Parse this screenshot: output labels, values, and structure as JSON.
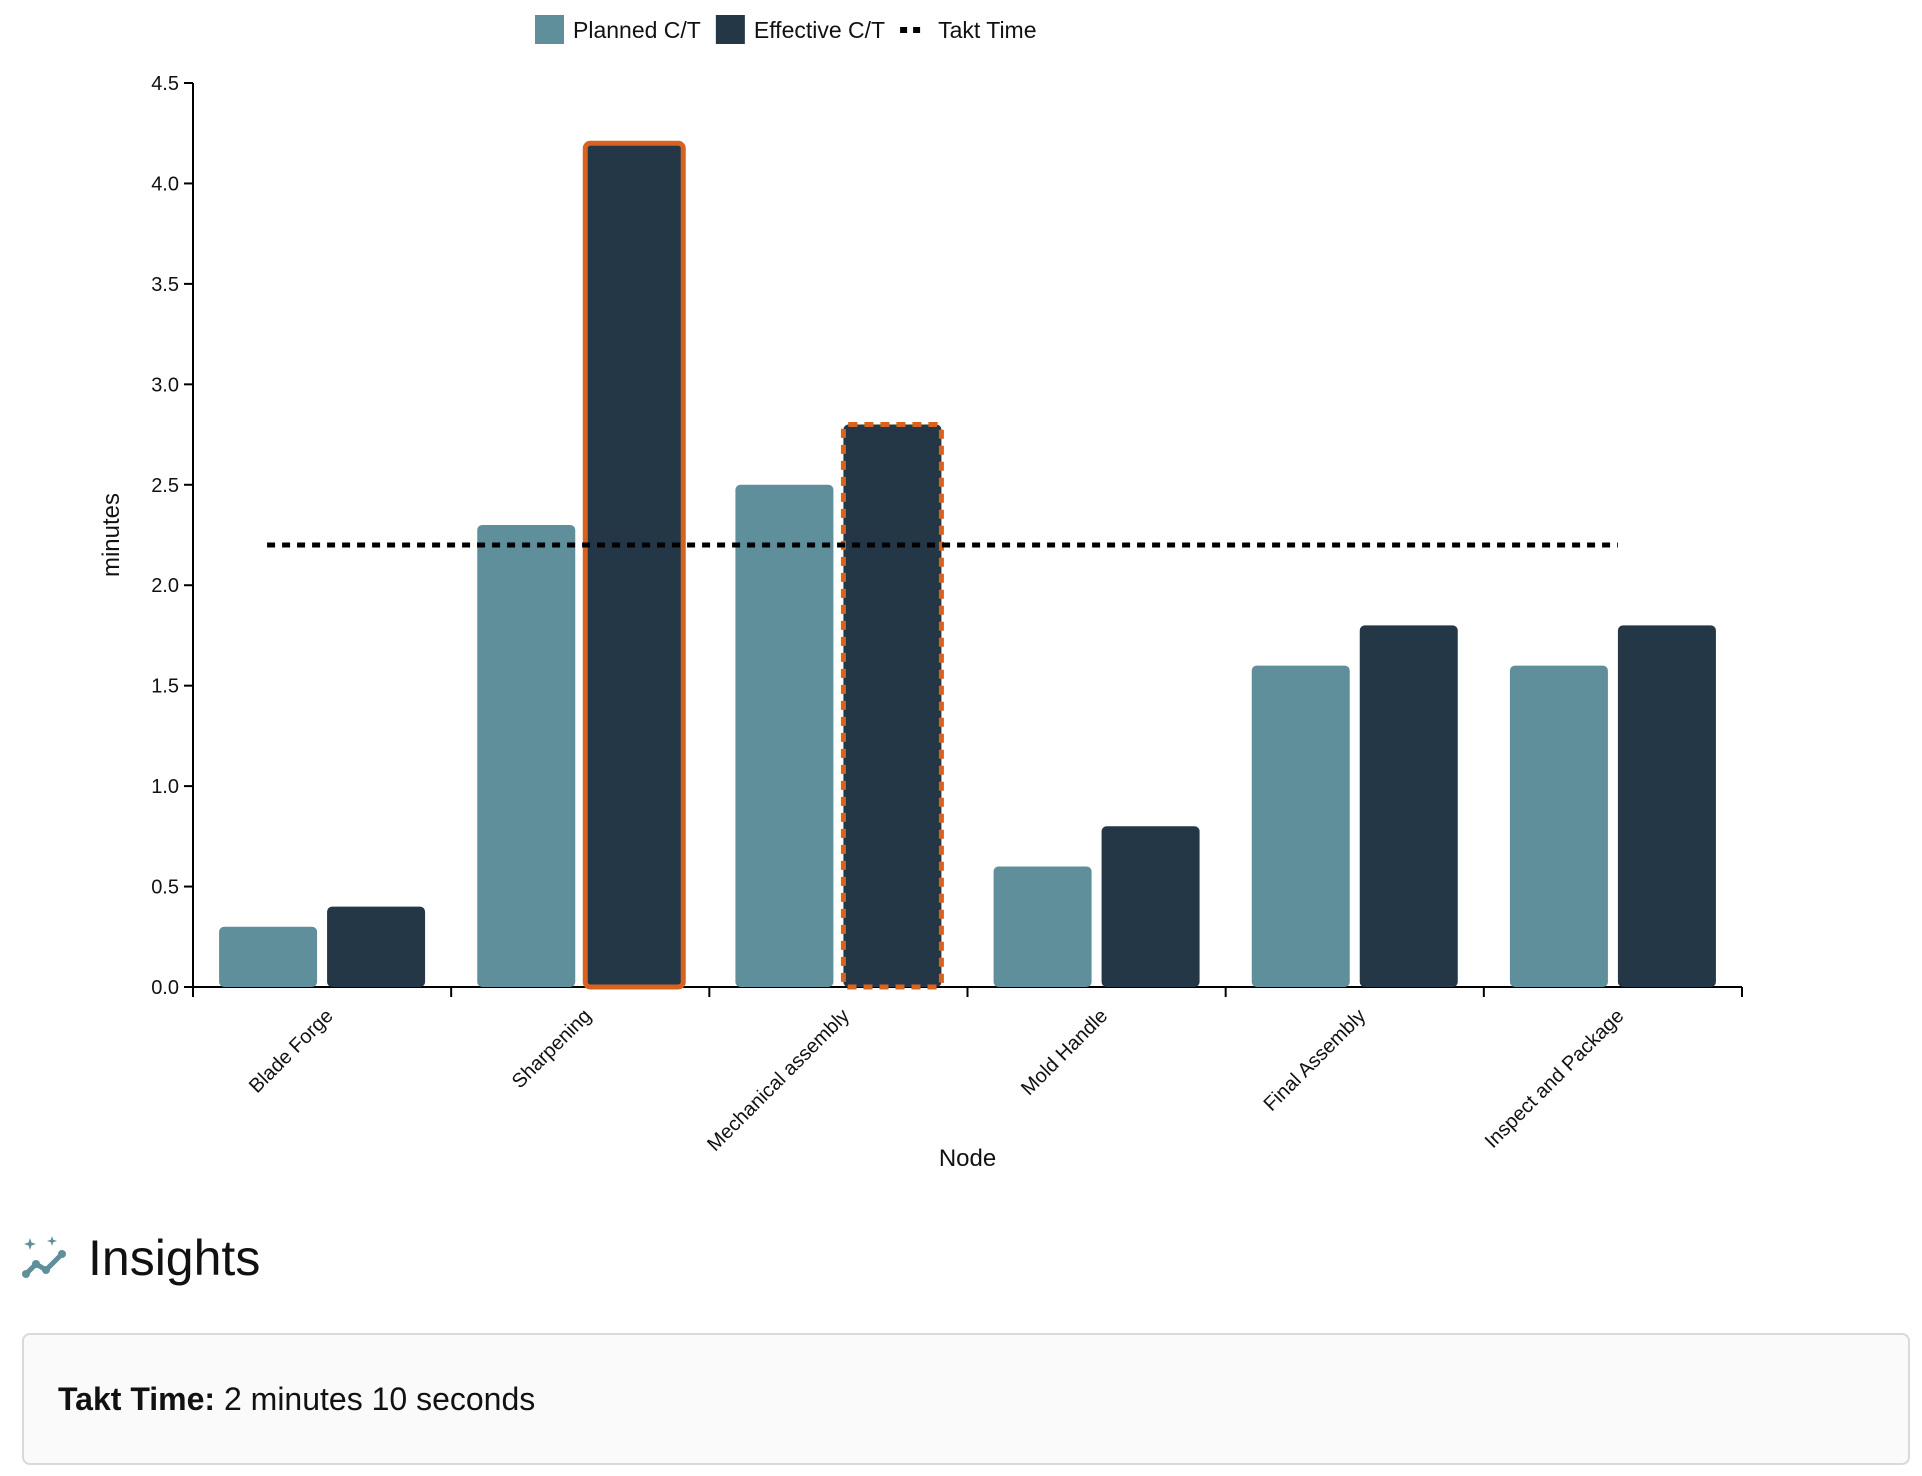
{
  "chart_data": {
    "type": "bar",
    "title": "",
    "xlabel": "Node",
    "ylabel": "minutes",
    "ylim": [
      0,
      4.5
    ],
    "yticks": [
      0.0,
      0.5,
      1.0,
      1.5,
      2.0,
      2.5,
      3.0,
      3.5,
      4.0,
      4.5
    ],
    "ytick_labels": [
      "0.0",
      "0.5",
      "1.0",
      "1.5",
      "2.0",
      "2.5",
      "3.0",
      "3.5",
      "4.0",
      "4.5"
    ],
    "categories": [
      "Blade Forge",
      "Sharpening",
      "Mechanical assembly",
      "Mold Handle",
      "Final Assembly",
      "Inspect and Package"
    ],
    "series": [
      {
        "name": "Planned C/T",
        "color": "#5e8f9b",
        "values": [
          0.3,
          2.3,
          2.5,
          0.6,
          1.6,
          1.6
        ]
      },
      {
        "name": "Effective C/T",
        "color": "#233746",
        "values": [
          0.4,
          4.2,
          2.8,
          0.8,
          1.8,
          1.8
        ]
      }
    ],
    "takt_time": {
      "name": "Takt Time",
      "value": 2.2,
      "style": "dotted",
      "color": "#000000"
    },
    "highlights": [
      {
        "category": "Sharpening",
        "series": "Effective C/T",
        "style": "solid",
        "color": "#d9621f"
      },
      {
        "category": "Mechanical assembly",
        "series": "Effective C/T",
        "style": "dashed",
        "color": "#d9621f"
      }
    ],
    "legend_position": "top-center",
    "grid": false
  },
  "insights": {
    "icon": "sparkle-trend-icon",
    "title": "Insights",
    "takt_label": "Takt Time:",
    "takt_value": "2 minutes 10 seconds"
  }
}
